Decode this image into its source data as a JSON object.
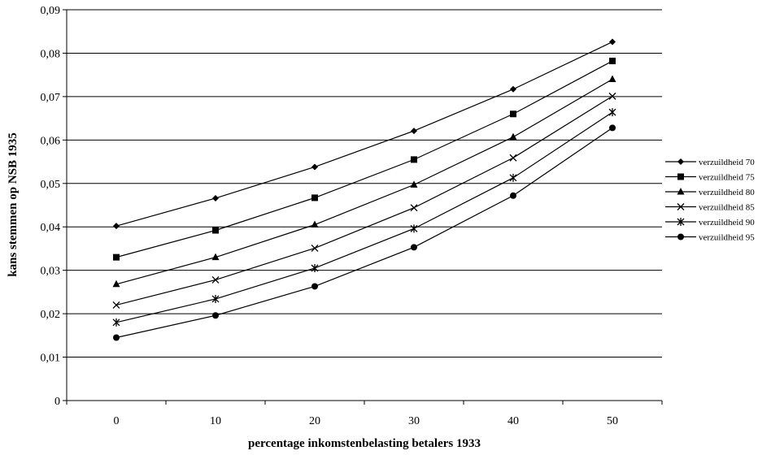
{
  "chart_data": {
    "type": "line",
    "title": "",
    "xlabel": "percentage inkomstenbelasting betalers 1933",
    "ylabel": "kans stemmen op NSB 1935",
    "categories": [
      "0",
      "10",
      "20",
      "30",
      "40",
      "50"
    ],
    "ylim": [
      0,
      0.09
    ],
    "yticks": [
      "0",
      "0,01",
      "0,02",
      "0,03",
      "0,04",
      "0,05",
      "0,06",
      "0,07",
      "0,08",
      "0,09"
    ],
    "grid": "horizontal",
    "legend_position": "right",
    "series": [
      {
        "name": "verzuildheid 70",
        "marker": "diamond",
        "values": [
          0.0402,
          0.0466,
          0.0538,
          0.0621,
          0.0717,
          0.0826
        ]
      },
      {
        "name": "verzuildheid 75",
        "marker": "square",
        "values": [
          0.033,
          0.0392,
          0.0467,
          0.0555,
          0.066,
          0.0782
        ]
      },
      {
        "name": "verzuildheid 80",
        "marker": "triangle",
        "values": [
          0.0268,
          0.033,
          0.0405,
          0.0497,
          0.0607,
          0.074
        ]
      },
      {
        "name": "verzuildheid 85",
        "marker": "x",
        "values": [
          0.022,
          0.0278,
          0.0351,
          0.0444,
          0.0559,
          0.0701
        ]
      },
      {
        "name": "verzuildheid 90",
        "marker": "star",
        "values": [
          0.018,
          0.0234,
          0.0305,
          0.0396,
          0.0513,
          0.0664
        ]
      },
      {
        "name": "verzuildheid 95",
        "marker": "circle",
        "values": [
          0.0145,
          0.0196,
          0.0263,
          0.0353,
          0.0472,
          0.0628
        ]
      }
    ]
  }
}
